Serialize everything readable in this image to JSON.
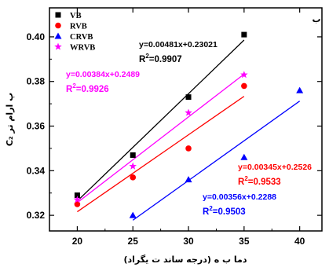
{
  "corner_label": "ب",
  "chart_data": {
    "type": "scatter",
    "xlabel": "دما ب ه (درجه ساند ت یگراد)",
    "ylabel": "C₂ پ ارام تر",
    "xlim": [
      17.5,
      42
    ],
    "ylim": [
      0.313,
      0.413
    ],
    "xticks": [
      "20",
      "25",
      "30",
      "35",
      "40"
    ],
    "yticks": [
      "0.32",
      "0.34",
      "0.36",
      "0.38",
      "0.40"
    ],
    "legend_position": "top-left",
    "series": [
      {
        "name": "VB",
        "color": "#000000",
        "marker": "square",
        "x": [
          20,
          25,
          30,
          35
        ],
        "y": [
          0.329,
          0.347,
          0.373,
          0.401
        ],
        "fit": {
          "slope": 0.00481,
          "intercept": 0.23021,
          "x_range": [
            20,
            35
          ]
        },
        "equation": "y=0.00481x+0.23021",
        "r2": "0.9907"
      },
      {
        "name": "RVB",
        "color": "#ff0000",
        "marker": "circle",
        "x": [
          20,
          25,
          30,
          35
        ],
        "y": [
          0.325,
          0.337,
          0.35,
          0.378
        ],
        "fit": {
          "slope": 0.00345,
          "intercept": 0.2526,
          "x_range": [
            20,
            35
          ]
        },
        "equation": "y=0.00345x+0.2526",
        "r2": "0.9533"
      },
      {
        "name": "CRVB",
        "color": "#0000ff",
        "marker": "triangle",
        "x": [
          25,
          30,
          35,
          40
        ],
        "y": [
          0.32,
          0.336,
          0.346,
          0.376
        ],
        "fit": {
          "slope": 0.00356,
          "intercept": 0.2288,
          "x_range": [
            25,
            40
          ]
        },
        "equation": "y=0.00356x+0.2288",
        "r2": "0.9503"
      },
      {
        "name": "WRVB",
        "color": "#ff00ff",
        "marker": "star",
        "x": [
          20,
          25,
          30,
          35
        ],
        "y": [
          0.327,
          0.342,
          0.366,
          0.383
        ],
        "fit": {
          "slope": 0.00384,
          "intercept": 0.2489,
          "x_range": [
            20,
            35
          ]
        },
        "equation": "y=0.00384x+0.2489",
        "r2": "0.9926"
      }
    ]
  }
}
